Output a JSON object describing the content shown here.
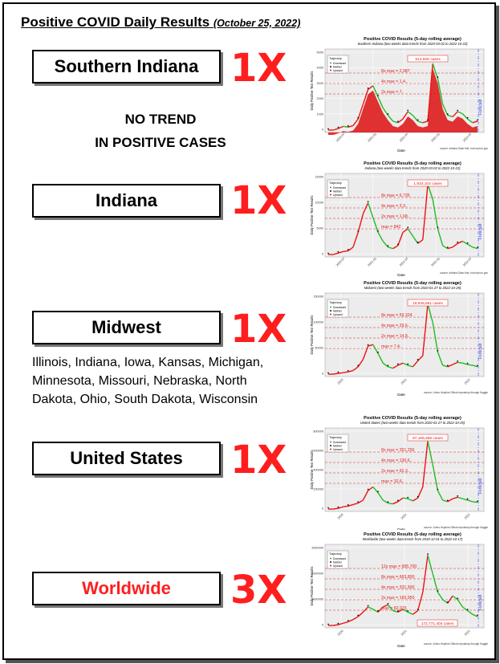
{
  "page": {
    "title": "Positive COVID Daily Results",
    "date": "(October 25, 2022)"
  },
  "note": {
    "line1": "NO TREND",
    "line2": "IN POSITIVE CASES"
  },
  "midwest_states": "Illinois, Indiana, Iowa, Kansas, Michigan, Minnesota, Missouri, Nebraska, North Dakota, Ohio, South Dakota, Wisconsin",
  "rows": [
    {
      "region": "Southern Indiana",
      "multiplier": "1X",
      "color": "#000000"
    },
    {
      "region": "Indiana",
      "multiplier": "1X",
      "color": "#000000"
    },
    {
      "region": "Midwest",
      "multiplier": "1X",
      "color": "#000000"
    },
    {
      "region": "United States",
      "multiplier": "1X",
      "color": "#000000"
    },
    {
      "region": "Worldwide",
      "multiplier": "3X",
      "color": "#ff1e1e"
    }
  ],
  "charts": [
    {
      "title": "Positive COVID Results (5-day rolling average)",
      "subtitle": "Southern Indiana (two-weeks data trends from 2020-03-02 to 2022-10-22)",
      "cases_label": "913,926 cases",
      "levels": [
        "8x max = 2,987",
        "4x max = 1,4..",
        "2x max = 7.."
      ],
      "ylabel": "Daily Positive Test Results",
      "xlabel": "Date",
      "source": "source: Indiana Data Hub, hub.mph.in.gov",
      "legend_title": "Trajectory",
      "legend": [
        "Downward",
        "Neither",
        "Upward"
      ],
      "forecast": "Forecast",
      "yticks": [
        "5000",
        "4000",
        "3000",
        "2000",
        "1000",
        "0"
      ],
      "xticks": [
        "2020-07",
        "2021-01",
        "2021-07",
        "2022-01",
        "2022-07"
      ],
      "series_y": [
        0,
        0,
        0.02,
        0.05,
        0.04,
        0.06,
        0.15,
        0.35,
        0.55,
        0.6,
        0.45,
        0.3,
        0.2,
        0.12,
        0.1,
        0.15,
        0.25,
        0.2,
        0.12,
        0.1,
        0.12,
        0.9,
        0.7,
        0.35,
        0.2,
        0.18,
        0.25,
        0.22,
        0.15,
        0.1,
        0.12
      ]
    },
    {
      "title": "Positive COVID Results (5-day rolling average)",
      "subtitle": "Indiana (two-weeks data trends from 2020-03-02 to 2022-10-22)",
      "cases_label": "1,933,102 cases",
      "levels": [
        "8x max = 6,735",
        "4x max = 3,3..",
        "2x max = 1,68..",
        "max = 842"
      ],
      "ylabel": "Daily Positive Test Results",
      "xlabel": "Date",
      "source": "source: Indiana Data Hub, hub.mph.in.gov",
      "legend_title": "Trajectory",
      "legend": [
        "Downward",
        "Neither",
        "Upward"
      ],
      "forecast": "Forecast",
      "yticks": [
        "15000",
        "10000",
        "5000",
        "0"
      ],
      "xticks": [
        "2020-07",
        "2021-01",
        "2021-07",
        "2022-01",
        "2022-07"
      ],
      "series_y": [
        0,
        0,
        0.02,
        0.04,
        0.05,
        0.1,
        0.3,
        0.55,
        0.7,
        0.5,
        0.3,
        0.18,
        0.1,
        0.08,
        0.12,
        0.3,
        0.35,
        0.25,
        0.15,
        0.2,
        0.95,
        0.75,
        0.35,
        0.12,
        0.08,
        0.1,
        0.15,
        0.18,
        0.14,
        0.1,
        0.08
      ]
    },
    {
      "title": "Positive COVID Results (5-day rolling average)",
      "subtitle": "Midwest (two-weeks data trends from 2020-01-27 to 2022-10-25)",
      "cases_label": "19,846,651 cases",
      "levels": [
        "8x max = 59,324",
        "4x max = 29,6..",
        "2x max = 14,8..",
        "max = 7,4.."
      ],
      "ylabel": "Daily Positive Test Results",
      "xlabel": "Date",
      "source": "source: Johns Hopkins Github repository through Kaggle",
      "legend_title": "Trajectory",
      "legend": [
        "Downward",
        "Neither",
        "Upward"
      ],
      "forecast": "Forecast",
      "yticks": [
        "150000",
        "100000",
        "50000",
        "0"
      ],
      "xticks": [
        "2020",
        "2021",
        "2022"
      ],
      "series_y": [
        0,
        0,
        0.01,
        0.02,
        0.03,
        0.05,
        0.1,
        0.2,
        0.38,
        0.4,
        0.28,
        0.15,
        0.1,
        0.08,
        0.12,
        0.15,
        0.12,
        0.1,
        0.18,
        0.25,
        0.95,
        0.7,
        0.3,
        0.12,
        0.1,
        0.13,
        0.16,
        0.15,
        0.13,
        0.12,
        0.1
      ]
    },
    {
      "title": "Positive COVID Results (5-day rolling average)",
      "subtitle": "United States (two-weeks data trends from 2020-01-27 to 2022-10-25)",
      "cases_label": "97,165,558 cases",
      "levels": [
        "8x max = 261,256",
        "4x max = 130,6..",
        "2x max = 65,3..",
        "max = 32,6.."
      ],
      "ylabel": "Daily Positive Test Results",
      "xlabel": "Date",
      "source": "source: Johns Hopkins Github repository through Kaggle",
      "legend_title": "Trajectory",
      "legend": [
        "Downward",
        "Neither",
        "Upward"
      ],
      "forecast": "Forecast",
      "yticks": [
        "800000",
        "600000",
        "400000",
        "200000",
        "0"
      ],
      "xticks": [
        "2020",
        "2021",
        "2022"
      ],
      "series_y": [
        0,
        0,
        0.01,
        0.03,
        0.04,
        0.06,
        0.08,
        0.12,
        0.25,
        0.3,
        0.22,
        0.12,
        0.08,
        0.07,
        0.1,
        0.15,
        0.14,
        0.11,
        0.15,
        0.3,
        0.92,
        0.6,
        0.25,
        0.12,
        0.1,
        0.14,
        0.16,
        0.14,
        0.12,
        0.1,
        0.09
      ]
    },
    {
      "title": "Positive COVID Results (5-day rolling average)",
      "subtitle": "Worldwide (two-weeks data trends from 2019-12-01 to 2022-10-17)",
      "cases_label": "172,771,404 cases",
      "levels": [
        "12x max = 995,700",
        "8x max = 663,800",
        "4x max = 331,900",
        "2x max = 165,950",
        "max = 82,975"
      ],
      "ylabel": "Daily Positive Test Results",
      "xlabel": "Date",
      "source": "source: Johns Hopkins Github repository through Kaggle",
      "legend_title": "Trajectory",
      "legend": [
        "Downward",
        "Neither",
        "Upward"
      ],
      "forecast": "Forecast",
      "yticks": [
        "3000000",
        "2000000",
        "1000000",
        "0"
      ],
      "xticks": [
        "2020",
        "2021",
        "2022"
      ],
      "series_y": [
        0,
        0,
        0.01,
        0.03,
        0.05,
        0.08,
        0.12,
        0.18,
        0.25,
        0.22,
        0.18,
        0.25,
        0.28,
        0.2,
        0.18,
        0.22,
        0.18,
        0.15,
        0.2,
        0.45,
        0.95,
        0.7,
        0.45,
        0.35,
        0.3,
        0.4,
        0.35,
        0.25,
        0.2,
        0.15,
        0.12
      ]
    }
  ]
}
